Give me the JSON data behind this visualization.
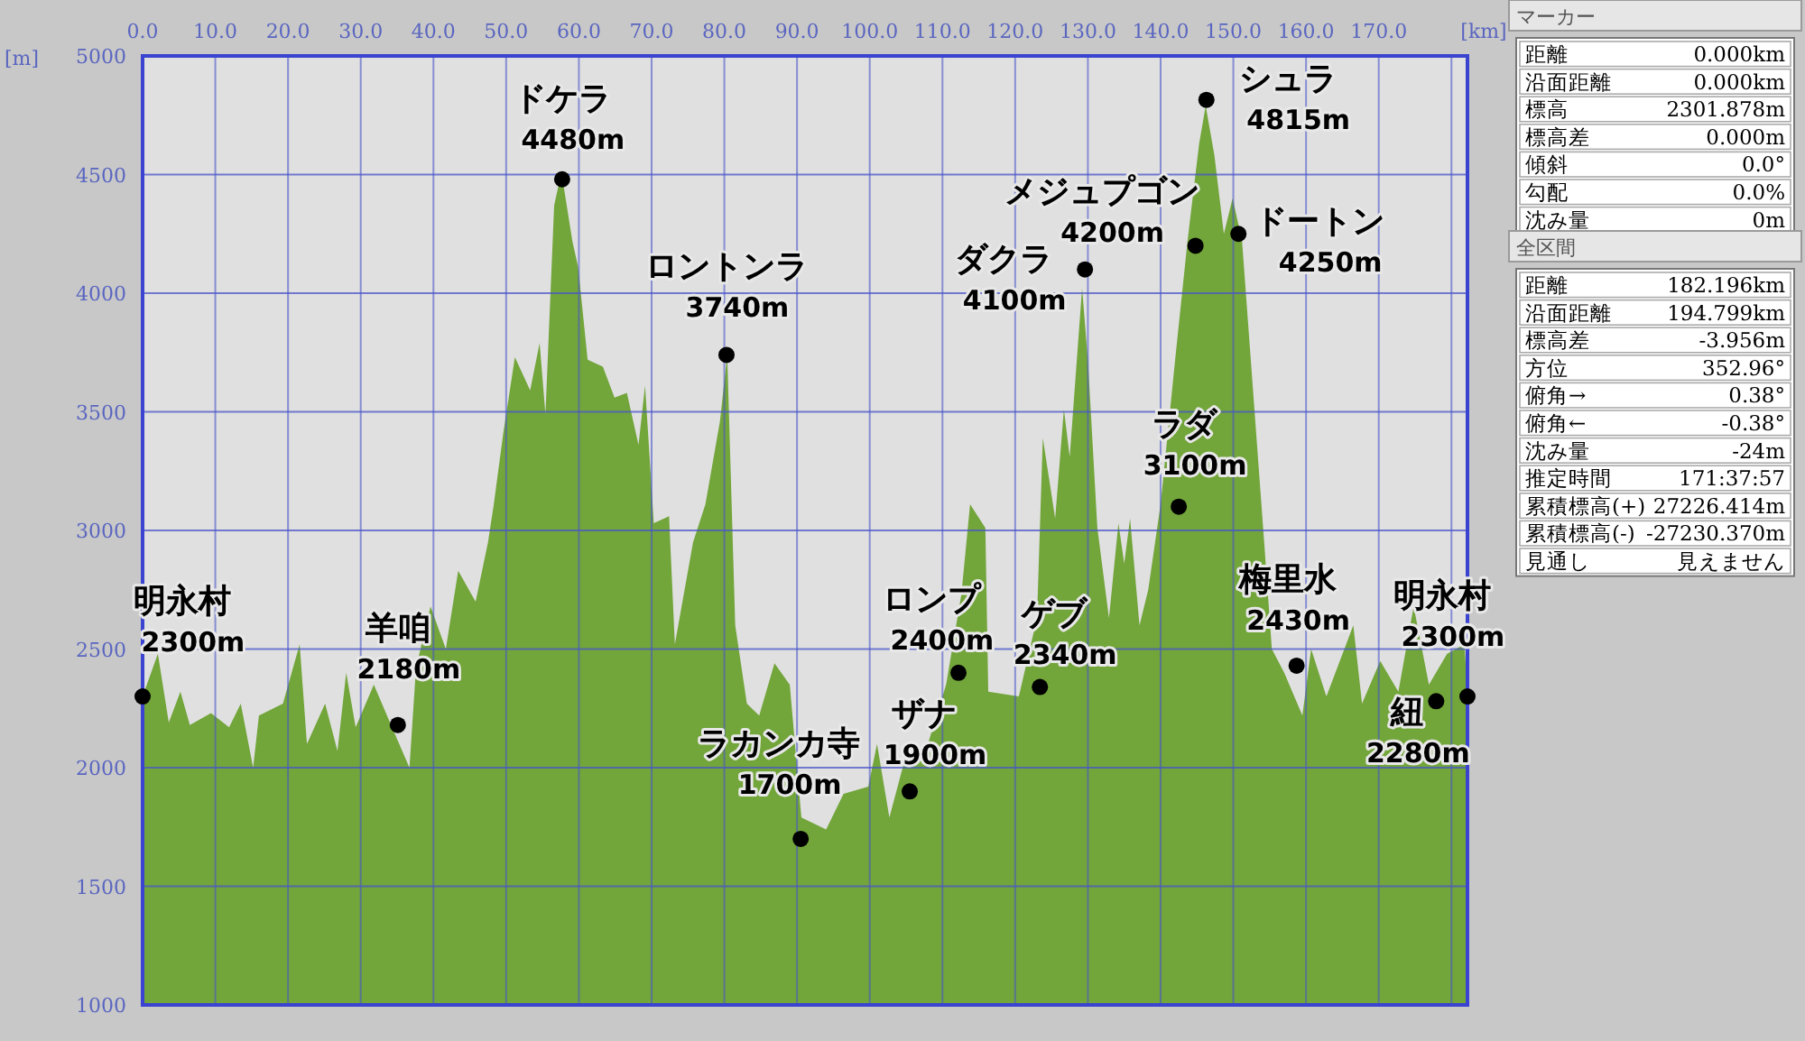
{
  "chart_data": [
    {
      "type": "area",
      "xlabel": "[km]",
      "ylabel": "[m]",
      "color": "#72a53a",
      "grid": true,
      "x": [
        0,
        2.1,
        3.6,
        5.2,
        6.5,
        9.4,
        11.9,
        13.5,
        15.2,
        16.0,
        19.3,
        21.6,
        22.6,
        25.1,
        26.8,
        28.0,
        29.3,
        31.8,
        34.3,
        36.7,
        37.6,
        39.6,
        41.7,
        43.4,
        45.8,
        47.5,
        48.3,
        49.6,
        51.2,
        53.3,
        54.6,
        55.4,
        56.6,
        57.6,
        59.1,
        59.9,
        61.2,
        63.3,
        64.9,
        66.6,
        68.2,
        69.1,
        70.3,
        72.4,
        73.2,
        75.7,
        77.4,
        79.4,
        80.4,
        81.5,
        83.1,
        84.8,
        86.9,
        89.0,
        90.6,
        94.0,
        96.4,
        99.8,
        101.0,
        102.7,
        104.7,
        108.0,
        110.5,
        112.6,
        113.8,
        115.9,
        116.3,
        120.5,
        123.0,
        123.8,
        125.5,
        126.7,
        127.5,
        129.2,
        130.0,
        131.3,
        132.9,
        134.2,
        135.0,
        135.8,
        137.1,
        138.3,
        140.0,
        142.0,
        143.7,
        145.3,
        146.2,
        147.4,
        148.7,
        149.9,
        151.2,
        152.4,
        154.1,
        155.3,
        157.0,
        159.5,
        160.7,
        162.8,
        166.5,
        167.7,
        170.2,
        172.7,
        174.8,
        176.9,
        179.4,
        181.8,
        182.2
      ],
      "values": [
        2300,
        2480,
        2190,
        2320,
        2180,
        2230,
        2170,
        2270,
        2000,
        2220,
        2270,
        2520,
        2100,
        2270,
        2070,
        2400,
        2170,
        2350,
        2170,
        2000,
        2420,
        2680,
        2500,
        2830,
        2700,
        2950,
        3110,
        3410,
        3730,
        3590,
        3790,
        3490,
        4370,
        4510,
        4220,
        4110,
        3720,
        3690,
        3560,
        3580,
        3360,
        3610,
        3030,
        3060,
        2520,
        2950,
        3110,
        3460,
        3740,
        2600,
        2270,
        2220,
        2440,
        2350,
        1790,
        1740,
        1890,
        1920,
        2100,
        1790,
        2020,
        2100,
        2350,
        2730,
        3110,
        3010,
        2320,
        2300,
        2630,
        3390,
        3050,
        3510,
        3310,
        4020,
        3720,
        3010,
        2630,
        3030,
        2860,
        3050,
        2600,
        2750,
        3110,
        3720,
        4220,
        4630,
        4790,
        4580,
        4250,
        4400,
        4220,
        3720,
        3010,
        2500,
        2400,
        2220,
        2500,
        2300,
        2600,
        2270,
        2450,
        2320,
        2680,
        2350,
        2480,
        2520,
        2300
      ],
      "xlim": [
        0,
        182.2
      ],
      "ylim": [
        1000,
        5000
      ],
      "xticks": [
        {
          "value": 0,
          "label": "0.0"
        },
        {
          "value": 10,
          "label": "10.0"
        },
        {
          "value": 20,
          "label": "20.0"
        },
        {
          "value": 30,
          "label": "30.0"
        },
        {
          "value": 40,
          "label": "40.0"
        },
        {
          "value": 50,
          "label": "50.0"
        },
        {
          "value": 60,
          "label": "60.0"
        },
        {
          "value": 70,
          "label": "70.0"
        },
        {
          "value": 80,
          "label": "80.0"
        },
        {
          "value": 90,
          "label": "90.0"
        },
        {
          "value": 100,
          "label": "100.0"
        },
        {
          "value": 110,
          "label": "110.0"
        },
        {
          "value": 120,
          "label": "120.0"
        },
        {
          "value": 130,
          "label": "130.0"
        },
        {
          "value": 140,
          "label": "140.0"
        },
        {
          "value": 150,
          "label": "150.0"
        },
        {
          "value": 160,
          "label": "160.0"
        },
        {
          "value": 170,
          "label": "170.0"
        },
        {
          "value": 180,
          "label": null
        }
      ],
      "yticks": [
        1000,
        1500,
        2000,
        2500,
        3000,
        3500,
        4000,
        4500,
        5000
      ],
      "annotations": [
        {
          "text": "明永村 2300m",
          "x": 0,
          "y": 2300
        },
        {
          "text": "羊咱 2180m",
          "x": 35.1,
          "y": 2180
        },
        {
          "text": "ドケラ 4480m",
          "x": 57.7,
          "y": 4480
        },
        {
          "text": "ロントンラ 3740m",
          "x": 80.3,
          "y": 3740
        },
        {
          "text": "ラカンカ寺 1700m",
          "x": 90.5,
          "y": 1700
        },
        {
          "text": "ザナ 1900m",
          "x": 105.5,
          "y": 1900
        },
        {
          "text": "ロンプ 2400m",
          "x": 112.2,
          "y": 2400
        },
        {
          "text": "ゲブ 2340m",
          "x": 123.4,
          "y": 2340
        },
        {
          "text": "ダクラ 4100m",
          "x": 129.6,
          "y": 4100
        },
        {
          "text": "ラダ 3100m",
          "x": 142.5,
          "y": 3100
        },
        {
          "text": "メジュプゴン 4200m",
          "x": 144.8,
          "y": 4200
        },
        {
          "text": "シュラ 4815m",
          "x": 146.3,
          "y": 4815
        },
        {
          "text": "ドートン 4250m",
          "x": 150.7,
          "y": 4250
        },
        {
          "text": "梅里水 2430m",
          "x": 158.7,
          "y": 2430
        },
        {
          "text": "紐 2280m",
          "x": 177.9,
          "y": 2280
        },
        {
          "text": "明永村 2300m",
          "x": 182.2,
          "y": 2300
        }
      ]
    },
    {
      "type": "other",
      "title": "マーカー",
      "annotations": [
        "距離",
        "0.000km",
        "沿面距離",
        "0.000km",
        "標高",
        "2301.878m",
        "標高差",
        "0.000m",
        "傾斜",
        "0.0°",
        "勾配",
        "0.0%",
        "沈み量",
        "0m"
      ]
    },
    {
      "type": "other",
      "title": "全区間",
      "annotations": [
        "距離",
        "182.196km",
        "沿面距離",
        "194.799km",
        "標高差",
        "-3.956m",
        "方位",
        "352.96°",
        "俯角→",
        "0.38°",
        "俯角←",
        "-0.38°",
        "沈み量",
        "-24m",
        "推定時間",
        "171:37:57",
        "累積標高(+)",
        "27226.414m",
        "累積標高(-)",
        "-27230.370m",
        "見通し",
        "見えません"
      ]
    }
  ]
}
